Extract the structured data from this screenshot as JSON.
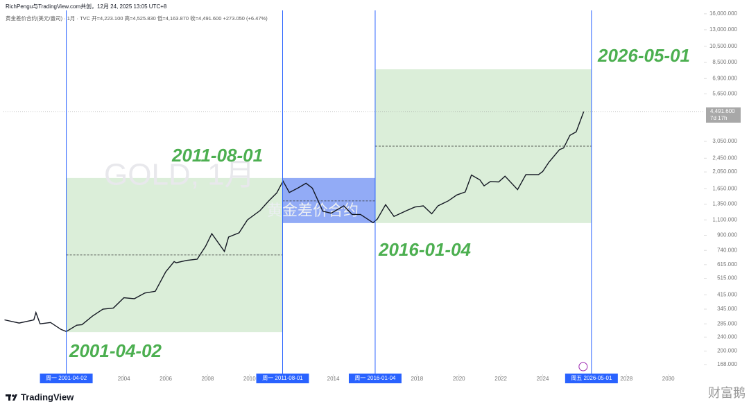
{
  "chart_data": {
    "type": "line",
    "credit": "RichPengu与TradingView.com共创，12月 24, 2025 13:05 UTC+8",
    "subtitle": "黄金差价合约(美元/盎司) · 1月 · TVC  开=4,223.100  高=4,525.830  低=4,163.870  收=4,491.600  +273.050 (+6.47%)",
    "watermark": "GOLD, 1月",
    "watermark_sub": "黄金差价合约",
    "brand": "TradingView",
    "source_mark": "财富鹅",
    "color": "#131722",
    "log_scale": true,
    "x": [
      1998.3,
      1999.0,
      1999.7,
      1999.8,
      2000.0,
      2000.5,
      2001.0,
      2001.25,
      2001.75,
      2002.0,
      2002.5,
      2003.0,
      2003.5,
      2004.0,
      2004.5,
      2005.0,
      2005.5,
      2006.0,
      2006.4,
      2006.5,
      2007.0,
      2007.5,
      2007.9,
      2008.2,
      2008.8,
      2009.0,
      2009.5,
      2009.9,
      2010.5,
      2010.9,
      2011.3,
      2011.6,
      2011.9,
      2012.3,
      2012.7,
      2013.0,
      2013.5,
      2013.9,
      2014.5,
      2014.9,
      2015.3,
      2015.9,
      2016.1,
      2016.5,
      2016.9,
      2017.5,
      2017.9,
      2018.3,
      2018.7,
      2019.0,
      2019.5,
      2019.9,
      2020.3,
      2020.6,
      2021.0,
      2021.2,
      2021.5,
      2021.9,
      2022.2,
      2022.8,
      2023.2,
      2023.8,
      2024.0,
      2024.3,
      2024.8,
      2025.0,
      2025.3,
      2025.6,
      2025.8,
      2025.96
    ],
    "values": [
      300,
      288,
      300,
      330,
      285,
      290,
      265,
      258,
      280,
      282,
      315,
      345,
      350,
      400,
      395,
      425,
      435,
      560,
      640,
      630,
      650,
      660,
      780,
      920,
      730,
      880,
      930,
      1100,
      1240,
      1400,
      1560,
      1820,
      1570,
      1660,
      1770,
      1660,
      1230,
      1200,
      1320,
      1180,
      1180,
      1060,
      1110,
      1340,
      1150,
      1240,
      1300,
      1320,
      1190,
      1320,
      1410,
      1520,
      1580,
      1970,
      1850,
      1710,
      1810,
      1800,
      1940,
      1630,
      1980,
      1980,
      2060,
      2330,
      2740,
      2800,
      3300,
      3450,
      4000,
      4491.6
    ],
    "current_price": {
      "value": 4491.6,
      "label": "4,491.600"
    },
    "countdown": "7d 17h",
    "xlim": [
      1998.25,
      2031.7
    ],
    "ylim": [
      148,
      16720
    ],
    "xticks": [
      2004,
      2006,
      2008,
      2010,
      2014,
      2018,
      2020,
      2022,
      2024,
      2028,
      2030
    ],
    "yticks": [
      {
        "value": 168,
        "label": "168.000"
      },
      {
        "value": 200,
        "label": "200.000"
      },
      {
        "value": 240,
        "label": "240.000"
      },
      {
        "value": 285,
        "label": "285.000"
      },
      {
        "value": 345,
        "label": "345.000"
      },
      {
        "value": 415,
        "label": "415.000"
      },
      {
        "value": 515,
        "label": "515.000"
      },
      {
        "value": 615,
        "label": "615.000"
      },
      {
        "value": 740,
        "label": "740.000"
      },
      {
        "value": 900,
        "label": "900.000"
      },
      {
        "value": 1100,
        "label": "1,100.000"
      },
      {
        "value": 1350,
        "label": "1,350.000"
      },
      {
        "value": 1650,
        "label": "1,650.000"
      },
      {
        "value": 2050,
        "label": "2,050.000"
      },
      {
        "value": 2450,
        "label": "2,450.000"
      },
      {
        "value": 3050,
        "label": "3,050.000"
      },
      {
        "value": 5650,
        "label": "5,650.000"
      },
      {
        "value": 6900,
        "label": "6,900.000"
      },
      {
        "value": 8500,
        "label": "8,500.000"
      },
      {
        "value": 10500,
        "label": "10,500.000"
      },
      {
        "value": 13000,
        "label": "13,000.000"
      },
      {
        "value": 16000,
        "label": "16,000.000"
      }
    ],
    "boxes": [
      {
        "x": [
          2001.25,
          2011.58
        ],
        "y": [
          256,
          1894
        ],
        "mid": 697,
        "color": "#d7ecd5"
      },
      {
        "x": [
          2011.58,
          2016.0
        ],
        "y": [
          1055,
          1894
        ],
        "mid": 1407,
        "color": "#7f9cf5"
      },
      {
        "x": [
          2016.0,
          2026.33
        ],
        "y": [
          1055,
          7780
        ],
        "mid": 2865,
        "color": "#d7ecd5"
      }
    ],
    "markers": [
      {
        "x": 2001.25,
        "date_label": "周一 2001-04-02",
        "annotation": "2001-04-02"
      },
      {
        "x": 2011.58,
        "date_label": "周一 2011-08-01",
        "annotation": "2011-08-01"
      },
      {
        "x": 2016.0,
        "date_label": "周一 2016-01-04",
        "annotation": "2016-01-04"
      },
      {
        "x": 2026.33,
        "date_label": "周五 2026-05-01",
        "annotation": "2026-05-01"
      }
    ],
    "marker_color": "#2962ff",
    "annotation_color": "#4caf50"
  }
}
